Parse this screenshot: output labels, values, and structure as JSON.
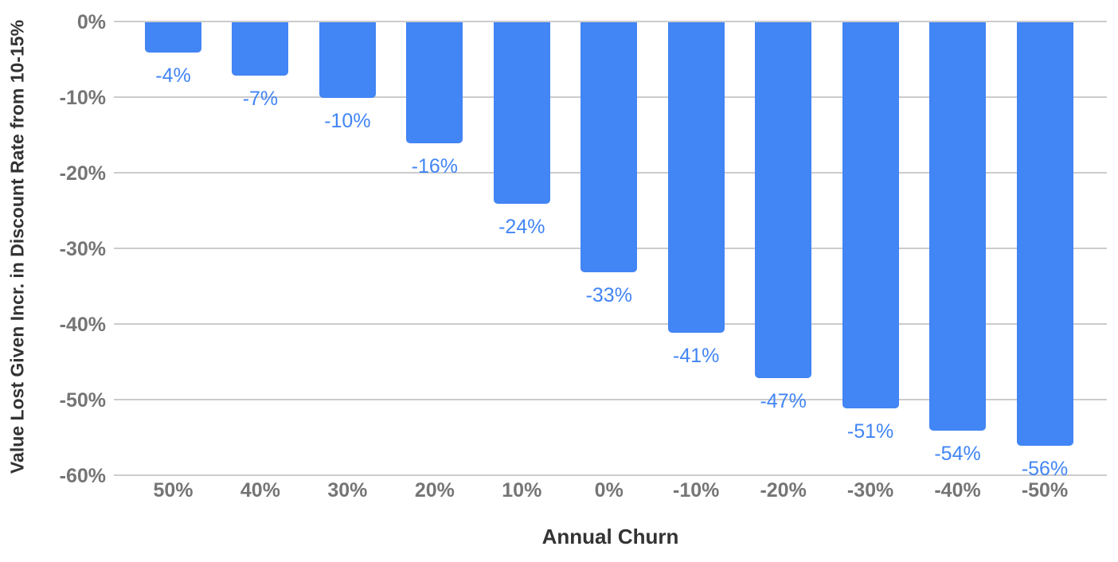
{
  "chart_data": {
    "type": "bar",
    "title": "",
    "xlabel": "Annual Churn",
    "ylabel": "Value Lost Given Incr. in Discount Rate from 10-15%",
    "categories": [
      "50%",
      "40%",
      "30%",
      "20%",
      "10%",
      "0%",
      "-10%",
      "-20%",
      "-30%",
      "-40%",
      "-50%"
    ],
    "values": [
      -4,
      -7,
      -10,
      -16,
      -24,
      -33,
      -41,
      -47,
      -51,
      -54,
      -56
    ],
    "data_labels": [
      "-4%",
      "-7%",
      "-10%",
      "-16%",
      "-24%",
      "-33%",
      "-41%",
      "-47%",
      "-51%",
      "-54%",
      "-56%"
    ],
    "y_ticks": [
      {
        "value": 0,
        "label": "0%"
      },
      {
        "value": -10,
        "label": "-10%"
      },
      {
        "value": -20,
        "label": "-20%"
      },
      {
        "value": -30,
        "label": "-30%"
      },
      {
        "value": -40,
        "label": "-40%"
      },
      {
        "value": -50,
        "label": "-50%"
      },
      {
        "value": -60,
        "label": "-60%"
      }
    ],
    "ylim": [
      -60,
      0
    ],
    "grid": true,
    "legend": "none",
    "colors": {
      "bar": "#4285f4",
      "data_label": "#4285f4",
      "tick_label": "#757575",
      "axis_title": "#333333",
      "gridline": "#cccccc",
      "background": "#ffffff"
    }
  }
}
